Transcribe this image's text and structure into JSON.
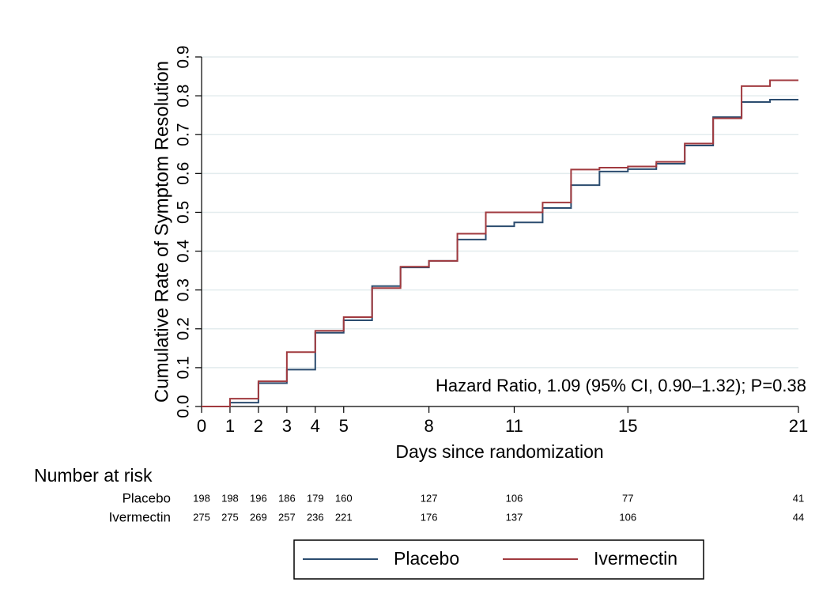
{
  "chart_data": {
    "type": "step",
    "ylabel": "Cumulative Rate of Symptom Resolution",
    "xlabel": "Days since randomization",
    "annotation": "Hazard Ratio, 1.09 (95% CI, 0.90–1.32); P=0.38",
    "x": [
      0,
      1,
      2,
      3,
      4,
      5,
      6,
      7,
      8,
      9,
      10,
      11,
      12,
      13,
      14,
      15,
      16,
      17,
      18,
      19,
      20,
      21
    ],
    "series": [
      {
        "name": "Placebo",
        "color": "#2b4c6f",
        "values": [
          0,
          0.01,
          0.06,
          0.095,
          0.19,
          0.222,
          0.31,
          0.358,
          0.375,
          0.43,
          0.464,
          0.474,
          0.511,
          0.57,
          0.605,
          0.611,
          0.625,
          0.672,
          0.745,
          0.784,
          0.79,
          0.79
        ]
      },
      {
        "name": "Ivermectin",
        "color": "#a13a3f",
        "values": [
          0,
          0.02,
          0.065,
          0.14,
          0.195,
          0.23,
          0.305,
          0.36,
          0.375,
          0.445,
          0.5,
          0.5,
          0.525,
          0.61,
          0.615,
          0.618,
          0.63,
          0.677,
          0.742,
          0.825,
          0.84,
          0.84
        ]
      }
    ],
    "xlim": [
      0,
      21
    ],
    "xticks": [
      0,
      1,
      2,
      3,
      4,
      5,
      8,
      11,
      15,
      21
    ],
    "ylim": [
      0,
      0.9
    ],
    "yticks": [
      {
        "value": 0,
        "label": "0.0"
      },
      0.1,
      0.2,
      0.3,
      0.4,
      0.5,
      0.6,
      0.7,
      0.8,
      0.9
    ],
    "grid": true,
    "risk_table": {
      "title": "Number at risk",
      "x": [
        0,
        1,
        2,
        3,
        4,
        5,
        8,
        11,
        15,
        21
      ],
      "rows": [
        {
          "name": "Placebo",
          "values": [
            198,
            198,
            196,
            186,
            179,
            160,
            127,
            106,
            77,
            41
          ]
        },
        {
          "name": "Ivermectin",
          "values": [
            275,
            275,
            269,
            257,
            236,
            221,
            176,
            137,
            106,
            44
          ]
        }
      ]
    }
  }
}
